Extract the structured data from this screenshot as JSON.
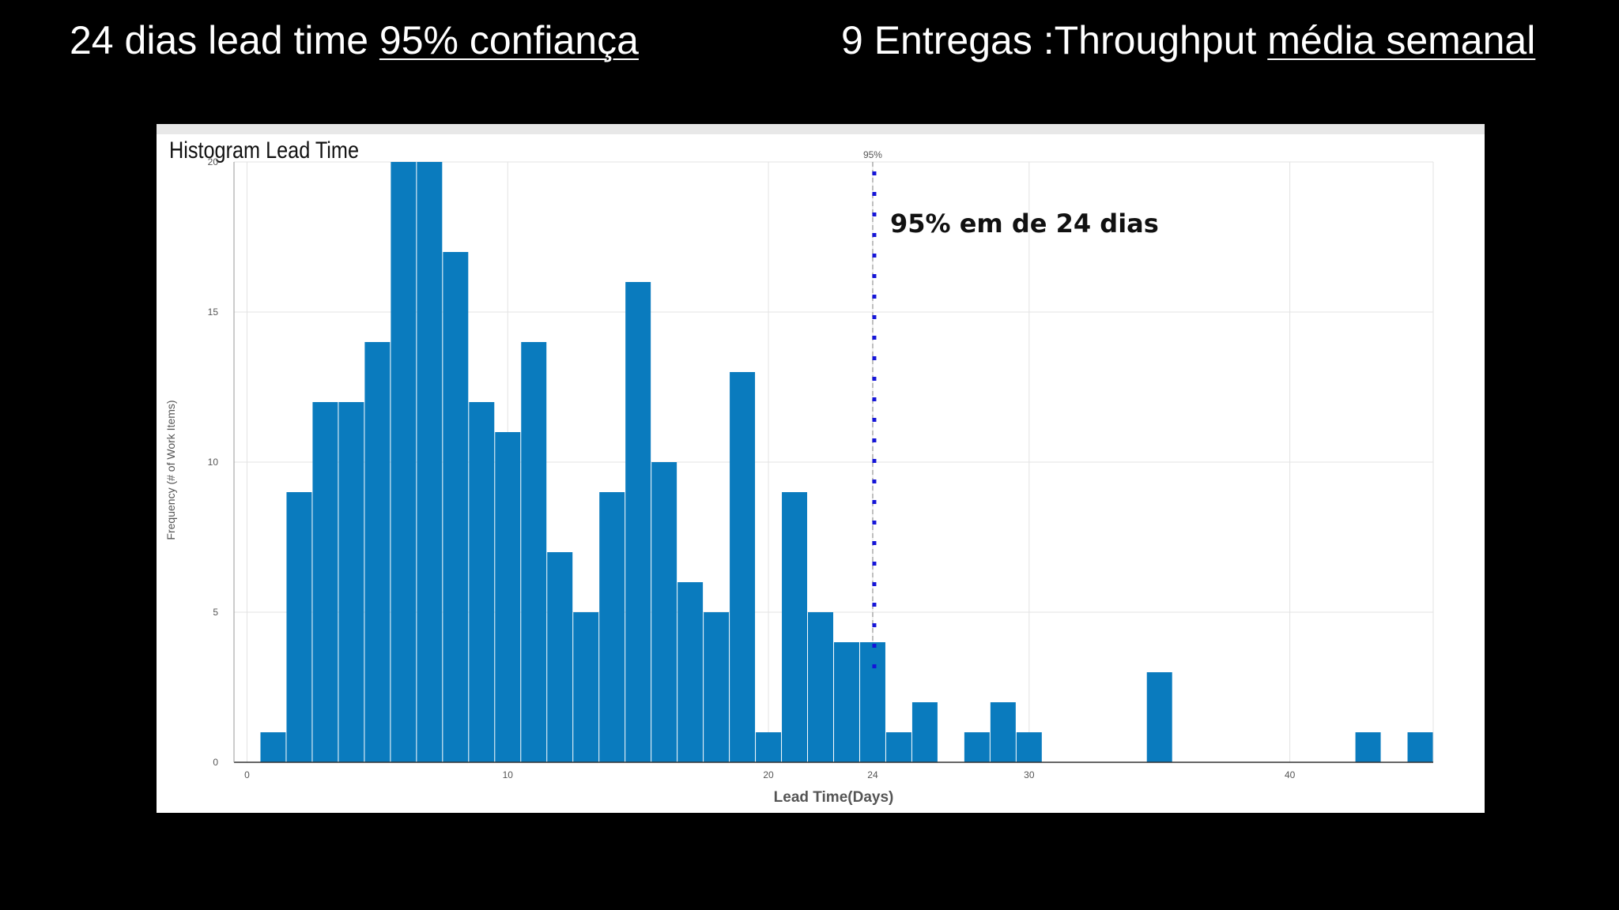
{
  "headline_left": {
    "value": "24 dias lead time",
    "underlined": "95% confiança"
  },
  "headline_right": {
    "value": "9 Entregas :Throughput",
    "underlined": "média semanal"
  },
  "chart_data": {
    "type": "bar",
    "title": "Histogram Lead Time",
    "xlabel": "Lead Time(Days)",
    "ylabel": "Frequency (# of Work Items)",
    "xlim": [
      -0.5,
      45.5
    ],
    "ylim": [
      0,
      20
    ],
    "xticks": [
      0,
      10,
      20,
      24,
      30,
      40
    ],
    "yticks": [
      0,
      5,
      10,
      15,
      20
    ],
    "bar_color": "#0A7BBE",
    "reference_color": "#1515D8",
    "x": [
      1,
      2,
      3,
      4,
      5,
      6,
      7,
      8,
      9,
      10,
      11,
      12,
      13,
      14,
      15,
      16,
      17,
      18,
      19,
      20,
      21,
      22,
      23,
      24,
      25,
      26,
      27,
      28,
      29,
      30,
      31,
      32,
      33,
      34,
      35,
      36,
      37,
      38,
      39,
      40,
      41,
      42,
      43,
      44,
      45
    ],
    "values": [
      1,
      9,
      12,
      12,
      14,
      20,
      20,
      17,
      12,
      11,
      14,
      7,
      5,
      9,
      16,
      10,
      6,
      5,
      13,
      1,
      9,
      5,
      4,
      4,
      1,
      2,
      0,
      1,
      2,
      1,
      0,
      0,
      0,
      0,
      3,
      0,
      0,
      0,
      0,
      0,
      0,
      0,
      1,
      0,
      1
    ],
    "reference_line": {
      "x": 24,
      "label": "95%",
      "annotation": "95% em de 24 dias"
    },
    "grid": true
  }
}
